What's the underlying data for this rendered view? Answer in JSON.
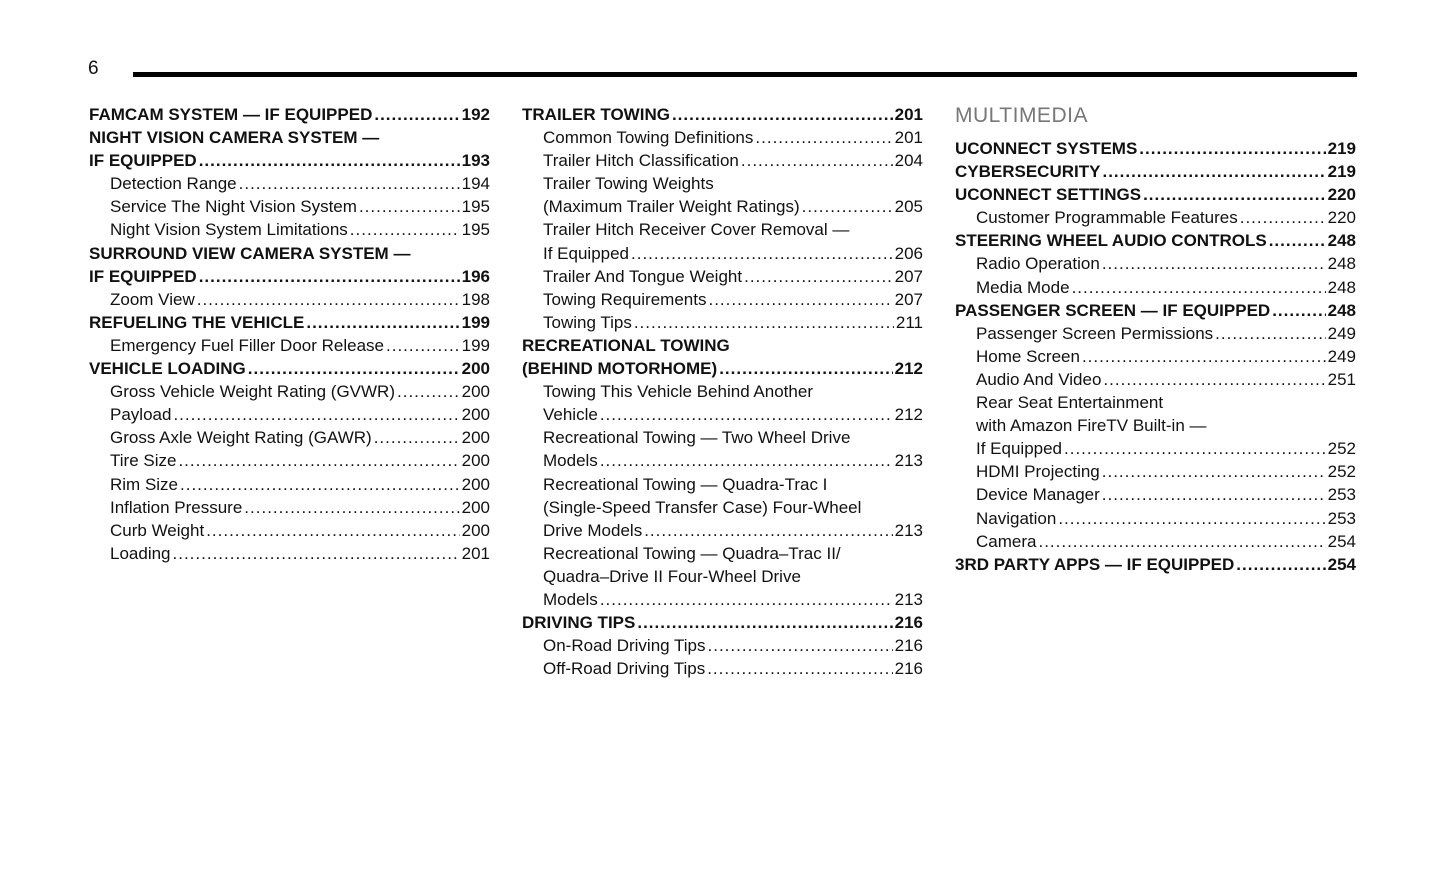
{
  "page_number": "6",
  "columns": [
    {
      "section": "",
      "entries": [
        {
          "level": 1,
          "lines": [
            "FAMCAM SYSTEM — IF EQUIPPED"
          ],
          "page": "192"
        },
        {
          "level": 1,
          "lines": [
            "NIGHT VISION CAMERA SYSTEM —",
            "IF EQUIPPED"
          ],
          "page": "193"
        },
        {
          "level": 2,
          "lines": [
            "Detection Range"
          ],
          "page": "194"
        },
        {
          "level": 2,
          "lines": [
            "Service The Night Vision System"
          ],
          "page": "195"
        },
        {
          "level": 2,
          "lines": [
            "Night Vision System Limitations"
          ],
          "page": "195"
        },
        {
          "level": 1,
          "lines": [
            "SURROUND VIEW CAMERA SYSTEM —",
            "IF EQUIPPED"
          ],
          "page": "196"
        },
        {
          "level": 2,
          "lines": [
            "Zoom View"
          ],
          "page": "198"
        },
        {
          "level": 1,
          "lines": [
            "REFUELING THE VEHICLE"
          ],
          "page": "199"
        },
        {
          "level": 2,
          "lines": [
            "Emergency Fuel Filler Door Release"
          ],
          "page": "199"
        },
        {
          "level": 1,
          "lines": [
            "VEHICLE LOADING"
          ],
          "page": "200"
        },
        {
          "level": 2,
          "lines": [
            "Gross Vehicle Weight Rating (GVWR)"
          ],
          "page": "200"
        },
        {
          "level": 2,
          "lines": [
            "Payload"
          ],
          "page": "200"
        },
        {
          "level": 2,
          "lines": [
            "Gross Axle Weight Rating (GAWR)"
          ],
          "page": "200"
        },
        {
          "level": 2,
          "lines": [
            "Tire Size"
          ],
          "page": "200"
        },
        {
          "level": 2,
          "lines": [
            "Rim Size"
          ],
          "page": "200"
        },
        {
          "level": 2,
          "lines": [
            "Inflation Pressure"
          ],
          "page": "200"
        },
        {
          "level": 2,
          "lines": [
            "Curb Weight"
          ],
          "page": "200"
        },
        {
          "level": 2,
          "lines": [
            "Loading"
          ],
          "page": "201"
        }
      ]
    },
    {
      "section": "",
      "entries": [
        {
          "level": 1,
          "lines": [
            "TRAILER TOWING"
          ],
          "page": "201"
        },
        {
          "level": 2,
          "lines": [
            "Common Towing Definitions"
          ],
          "page": "201"
        },
        {
          "level": 2,
          "lines": [
            "Trailer Hitch Classification"
          ],
          "page": "204"
        },
        {
          "level": 2,
          "lines": [
            "Trailer Towing Weights",
            "(Maximum Trailer Weight Ratings)"
          ],
          "page": "205"
        },
        {
          "level": 2,
          "lines": [
            "Trailer Hitch Receiver Cover Removal —",
            "If Equipped"
          ],
          "page": "206"
        },
        {
          "level": 2,
          "lines": [
            "Trailer And Tongue Weight"
          ],
          "page": "207"
        },
        {
          "level": 2,
          "lines": [
            "Towing Requirements"
          ],
          "page": "207"
        },
        {
          "level": 2,
          "lines": [
            "Towing Tips"
          ],
          "page": "211"
        },
        {
          "level": 1,
          "lines": [
            "RECREATIONAL TOWING",
            "(BEHIND MOTORHOME)"
          ],
          "page": "212"
        },
        {
          "level": 2,
          "lines": [
            "Towing This Vehicle Behind Another",
            "Vehicle"
          ],
          "page": "212"
        },
        {
          "level": 2,
          "lines": [
            "Recreational Towing — Two Wheel Drive",
            "Models"
          ],
          "page": "213"
        },
        {
          "level": 2,
          "lines": [
            "Recreational Towing — Quadra-Trac I",
            "(Single-Speed Transfer Case) Four-Wheel",
            "Drive Models"
          ],
          "page": "213"
        },
        {
          "level": 2,
          "lines": [
            "Recreational Towing — Quadra–Trac II/",
            "Quadra–Drive II Four-Wheel Drive",
            "Models"
          ],
          "page": "213"
        },
        {
          "level": 1,
          "lines": [
            "DRIVING TIPS"
          ],
          "page": "216"
        },
        {
          "level": 2,
          "lines": [
            "On-Road Driving Tips"
          ],
          "page": "216"
        },
        {
          "level": 2,
          "lines": [
            "Off-Road Driving Tips"
          ],
          "page": "216"
        }
      ]
    },
    {
      "section": "MULTIMEDIA",
      "entries": [
        {
          "level": 1,
          "lines": [
            "UCONNECT SYSTEMS"
          ],
          "page": "219"
        },
        {
          "level": 1,
          "lines": [
            "CYBERSECURITY"
          ],
          "page": "219"
        },
        {
          "level": 1,
          "lines": [
            "UCONNECT SETTINGS"
          ],
          "page": "220"
        },
        {
          "level": 2,
          "lines": [
            "Customer Programmable Features"
          ],
          "page": "220"
        },
        {
          "level": 1,
          "lines": [
            "STEERING WHEEL AUDIO CONTROLS"
          ],
          "page": "248"
        },
        {
          "level": 2,
          "lines": [
            "Radio Operation"
          ],
          "page": "248"
        },
        {
          "level": 2,
          "lines": [
            "Media Mode"
          ],
          "page": "248"
        },
        {
          "level": 1,
          "lines": [
            "PASSENGER SCREEN — IF EQUIPPED"
          ],
          "page": "248"
        },
        {
          "level": 2,
          "lines": [
            "Passenger Screen Permissions"
          ],
          "page": "249"
        },
        {
          "level": 2,
          "lines": [
            "Home Screen"
          ],
          "page": "249"
        },
        {
          "level": 2,
          "lines": [
            "Audio And Video"
          ],
          "page": "251"
        },
        {
          "level": 2,
          "lines": [
            "Rear Seat Entertainment",
            "with Amazon FireTV Built-in —",
            "If Equipped"
          ],
          "page": "252"
        },
        {
          "level": 2,
          "lines": [
            "HDMI Projecting"
          ],
          "page": "252"
        },
        {
          "level": 2,
          "lines": [
            "Device Manager"
          ],
          "page": "253"
        },
        {
          "level": 2,
          "lines": [
            "Navigation"
          ],
          "page": "253"
        },
        {
          "level": 2,
          "lines": [
            "Camera"
          ],
          "page": "254"
        },
        {
          "level": 1,
          "lines": [
            "3RD PARTY APPS — IF EQUIPPED"
          ],
          "page": "254"
        }
      ]
    }
  ]
}
